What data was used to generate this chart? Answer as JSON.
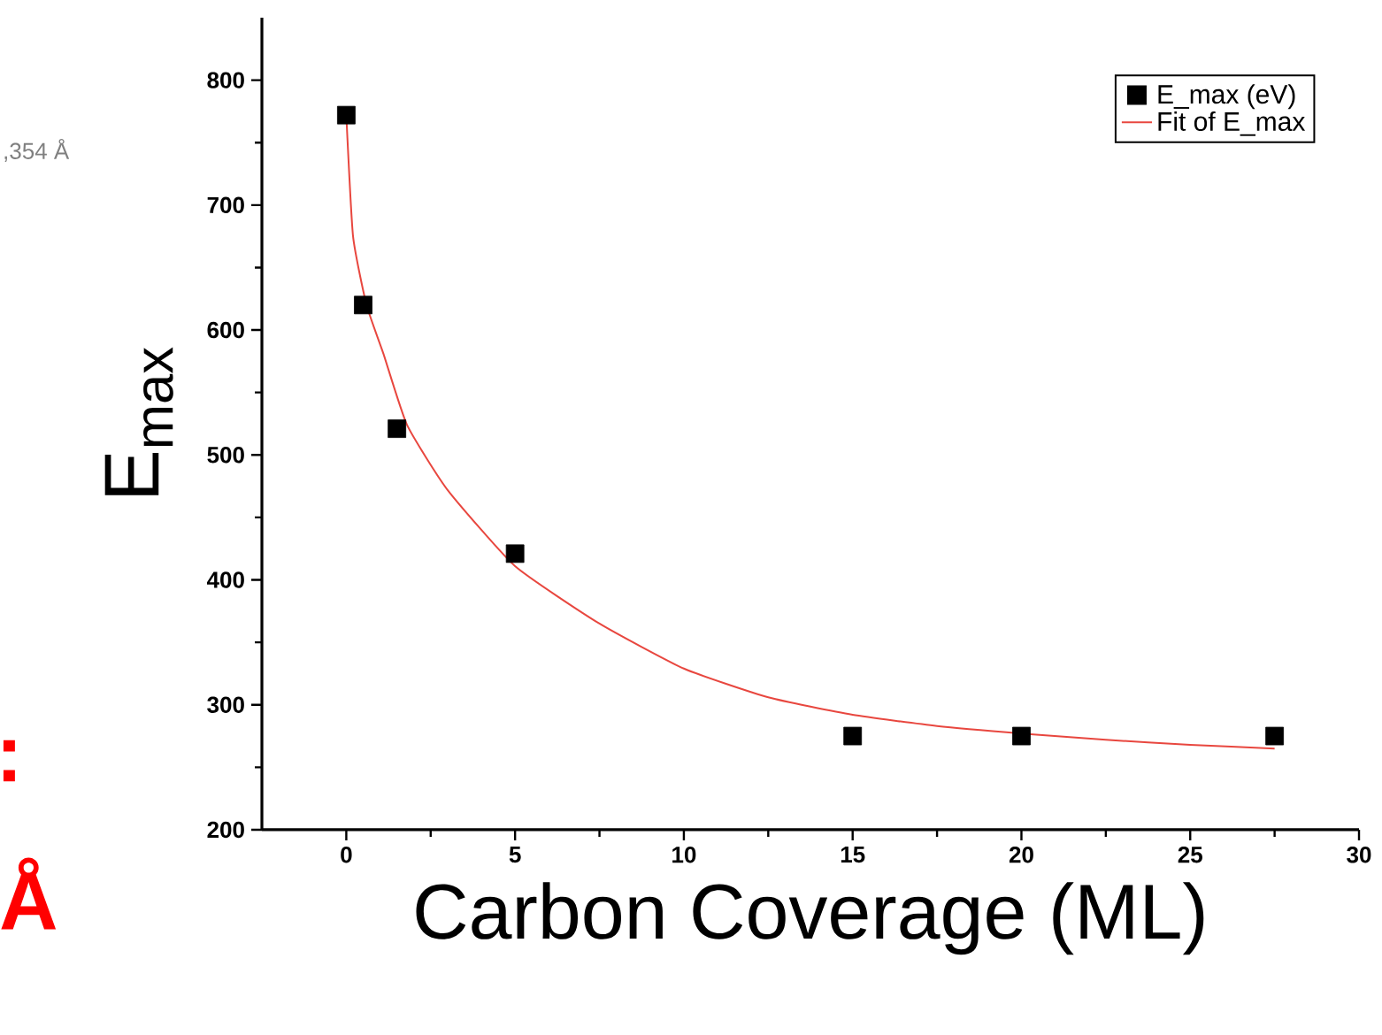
{
  "chart_data": {
    "type": "scatter",
    "xlabel": "Carbon Coverage (ML)",
    "ylabel": "E$_{max}$",
    "xlim": [
      -2.5,
      30
    ],
    "ylim": [
      200,
      850
    ],
    "xticks": [
      0,
      5,
      10,
      15,
      20,
      25,
      30
    ],
    "yticks": [
      200,
      300,
      400,
      500,
      600,
      700,
      800
    ],
    "legend": "top right",
    "grid": false,
    "annotations": [
      ",354 Å",
      ":",
      "Å"
    ],
    "series": [
      {
        "name": "E_max (eV)",
        "marker": "square",
        "color": "#000000",
        "x": [
          0,
          0.5,
          1.5,
          5,
          15,
          20,
          27.5
        ],
        "values": [
          772,
          620,
          521,
          421,
          275,
          275,
          275
        ]
      },
      {
        "name": "Fit of E_max",
        "type": "line",
        "marker": "none",
        "line_style": "solid",
        "color": "#e8473f",
        "x": [
          0,
          0.2,
          0.6,
          1.1,
          1.8,
          3,
          5,
          7.5,
          10,
          12.5,
          15,
          17.5,
          20,
          22.5,
          25,
          27.5
        ],
        "values": [
          772,
          675,
          620,
          581,
          524,
          472,
          411,
          365,
          329,
          306,
          292,
          283,
          277,
          272,
          268,
          265
        ]
      }
    ]
  }
}
